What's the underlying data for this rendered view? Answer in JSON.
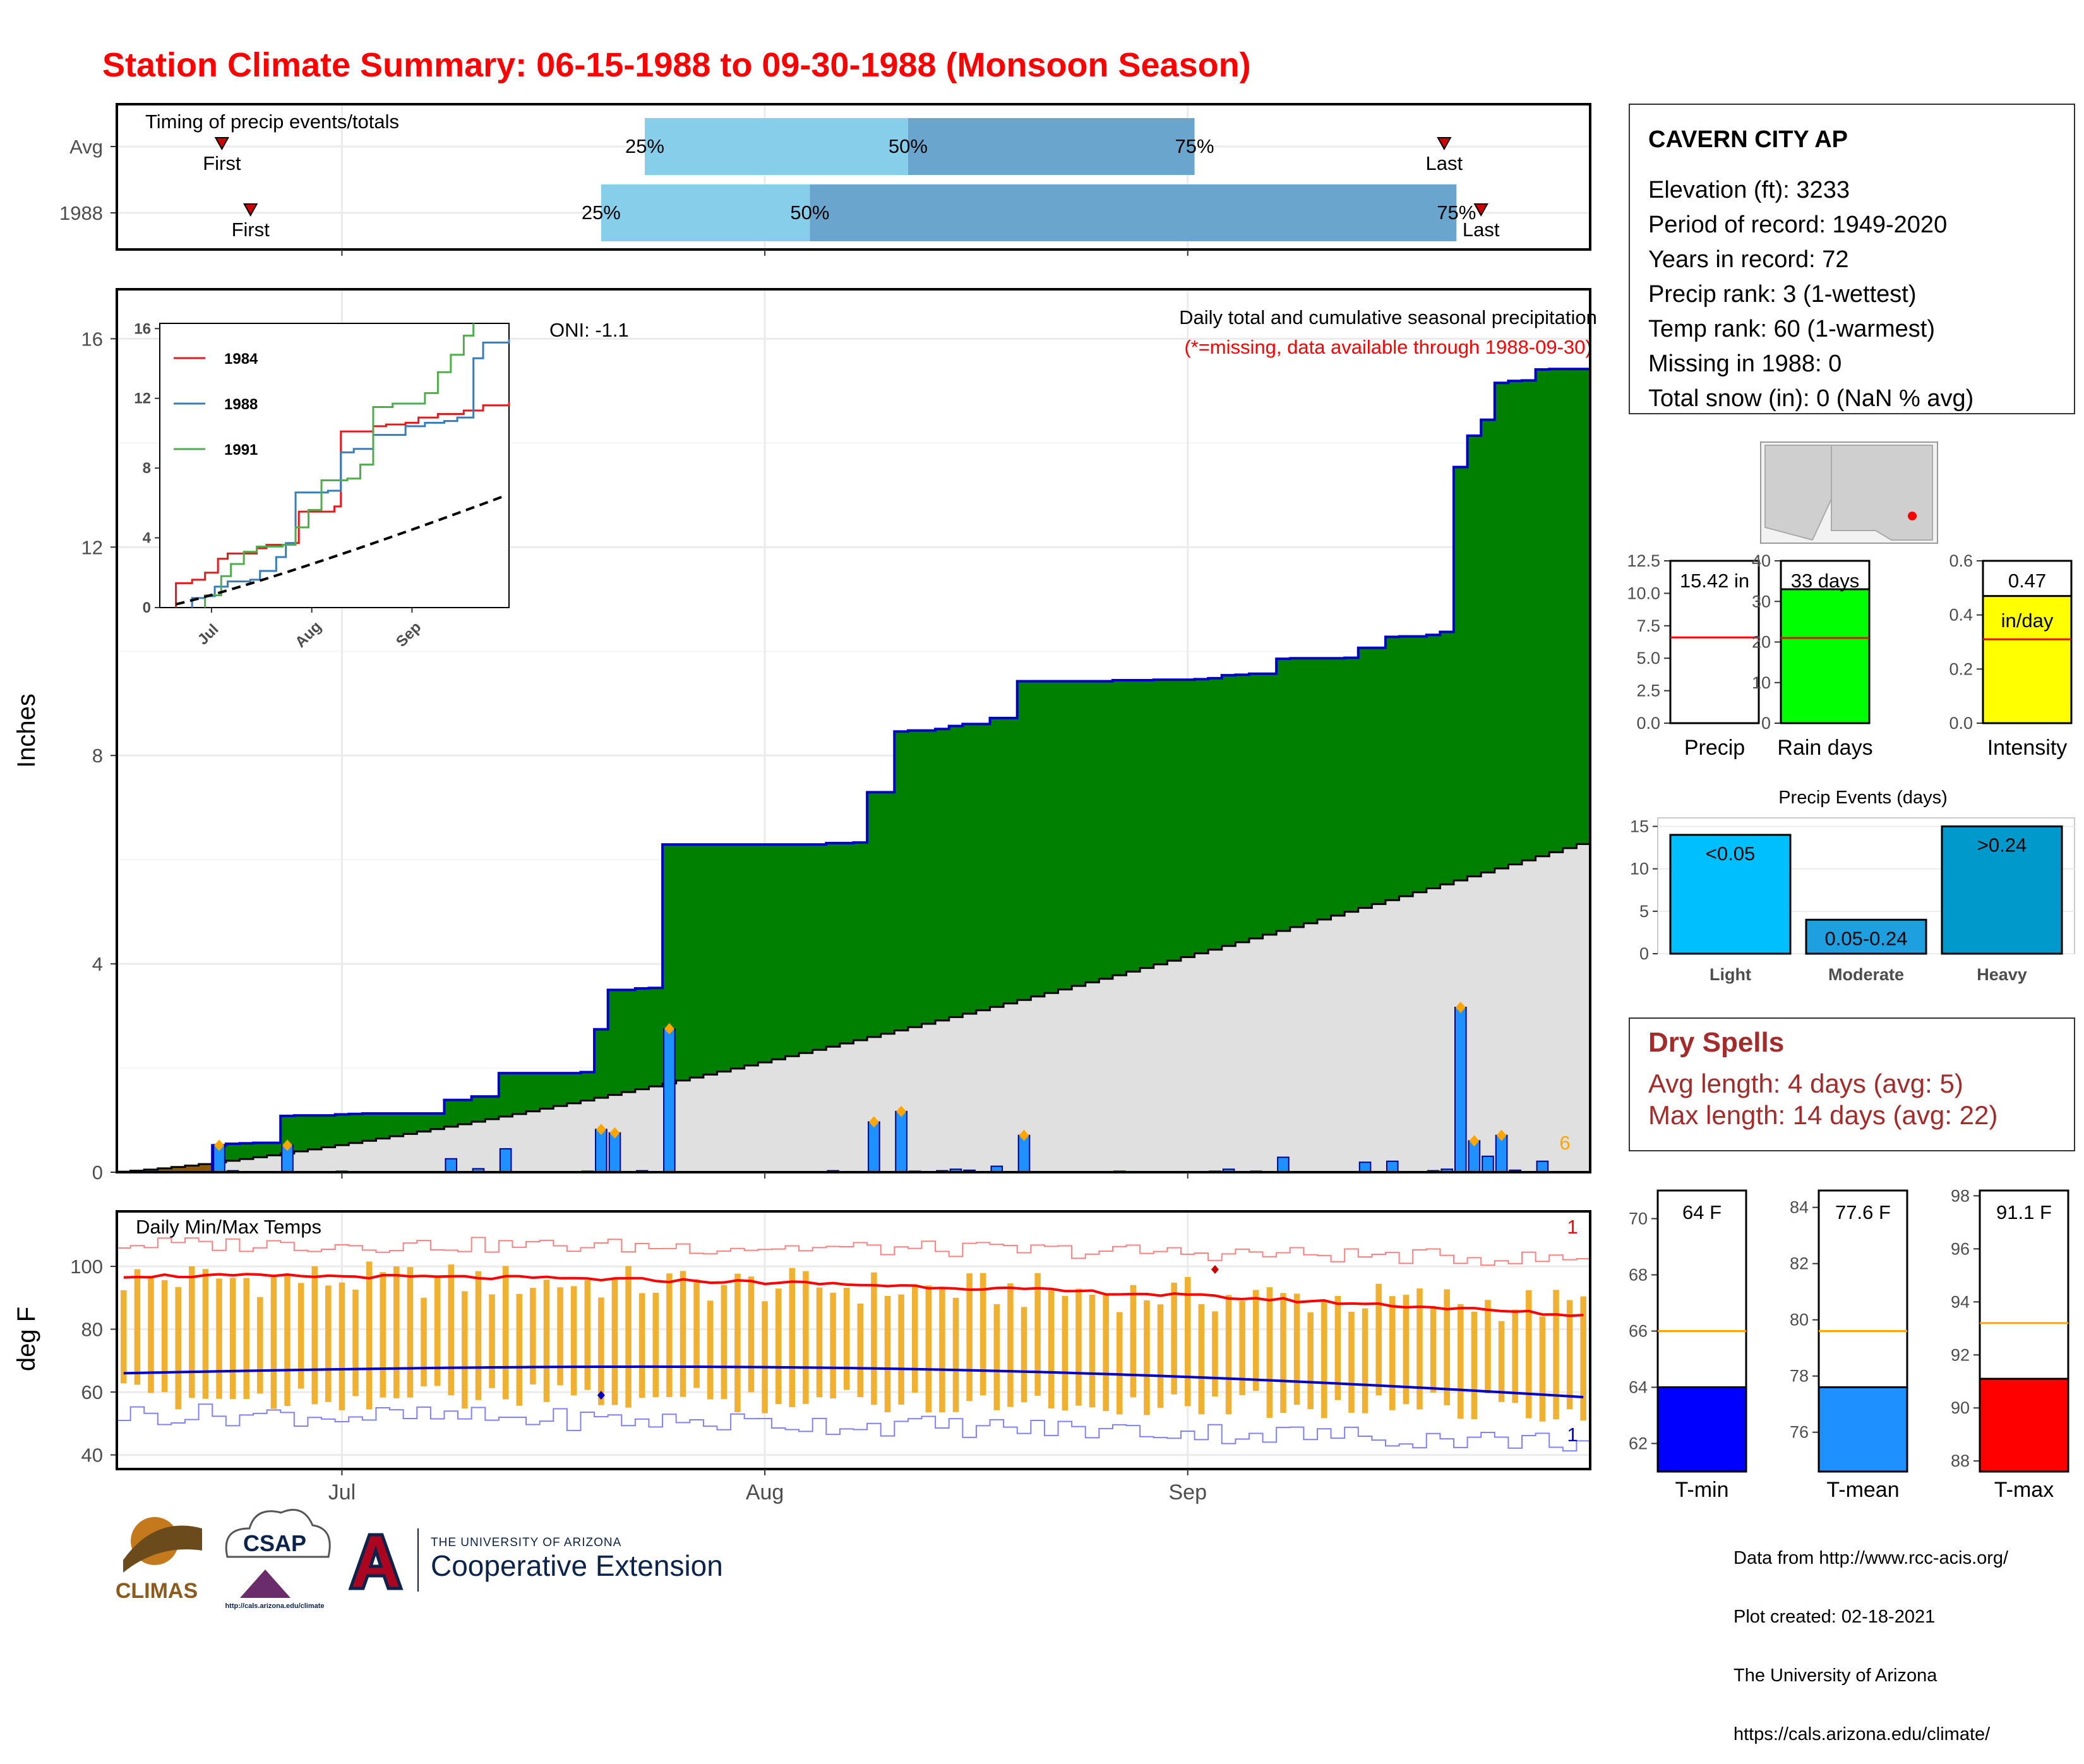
{
  "title": "Station Climate Summary: 06-15-1988 to 09-30-1988 (Monsoon Season)",
  "timing_panel": {
    "label": "Timing of precip events/totals",
    "rows": [
      "Avg",
      "1988"
    ],
    "avg": {
      "first": "First",
      "last": "Last",
      "p25": "25%",
      "p50": "50%",
      "p75": "75%"
    },
    "y1988": {
      "first": "First",
      "last": "Last",
      "p25": "25%",
      "p50": "50%",
      "p75": "75%"
    },
    "colors": {
      "light": "#87ceeb",
      "dark": "#6aa5cd",
      "marker": "#cc0000"
    }
  },
  "main_chart": {
    "ylabel": "Inches",
    "yticks": [
      "0",
      "4",
      "8",
      "12",
      "16"
    ],
    "xticks": [
      "Jul",
      "Aug",
      "Sep"
    ],
    "oni": "ONI: -1.1",
    "legend_title": "Daily total and cumulative seasonal precipitation",
    "legend_note": "(*=missing, data available through 1988-09-30)",
    "corner_count": "6",
    "colors": {
      "cumulative_fill": "#008000",
      "cumulative_line": "#0000cd",
      "avg_fill": "#e0e0e0",
      "deficit_fill": "#8b5a00",
      "daily_bar": "#1e90ff",
      "marker": "#ffa500"
    }
  },
  "inset": {
    "yticks": [
      "0",
      "4",
      "8",
      "12",
      "16"
    ],
    "xticks": [
      "Jul",
      "Aug",
      "Sep"
    ],
    "legend": [
      {
        "name": "1984",
        "color": "#e41a1c"
      },
      {
        "name": "1988",
        "color": "#377eb8"
      },
      {
        "name": "1991",
        "color": "#4daf4a"
      }
    ]
  },
  "temp_chart": {
    "ylabel": "deg F",
    "label": "Daily Min/Max Temps",
    "yticks": [
      "40",
      "60",
      "80",
      "100"
    ],
    "xticks": [
      "Jul",
      "Aug",
      "Sep"
    ],
    "top_count": "1",
    "bottom_count": "1",
    "colors": {
      "bar": "#f0b030",
      "max_line": "#ff0000",
      "min_line": "#0000cd"
    }
  },
  "station": {
    "name": "CAVERN CITY AP",
    "lines": [
      "Elevation (ft): 3233",
      "Period of record: 1949-2020",
      "Years in record: 72",
      "Precip rank: 3 (1-wettest)",
      "Temp rank: 60 (1-warmest)",
      "Missing in 1988: 0",
      "Total snow (in): 0 (NaN % avg)"
    ]
  },
  "summary_bars": [
    {
      "label": "Precip",
      "value_label": "15.42 in",
      "value": 15.42,
      "avg": 6.6,
      "ymax": 12.5,
      "yticks": [
        "0.0",
        "2.5",
        "5.0",
        "7.5",
        "10.0",
        "12.5"
      ],
      "color": "#ffffff"
    },
    {
      "label": "Rain days",
      "value_label": "33 days",
      "value": 33,
      "avg": 21,
      "ymax": 40,
      "yticks": [
        "0",
        "10",
        "20",
        "30",
        "40"
      ],
      "color": "#00ff00"
    },
    {
      "label": "Intensity",
      "value_label": "0.47",
      "unit": "in/day",
      "value": 0.47,
      "avg": 0.31,
      "ymax": 0.6,
      "yticks": [
        "0.0",
        "0.2",
        "0.4",
        "0.6"
      ],
      "color": "#ffff00"
    }
  ],
  "precip_events": {
    "title": "Precip Events (days)",
    "yticks": [
      "0",
      "5",
      "10",
      "15"
    ],
    "bars": [
      {
        "label": "Light",
        "range": "<0.05",
        "value": 14,
        "color": "#00bfff"
      },
      {
        "label": "Moderate",
        "range": "0.05-0.24",
        "value": 4,
        "color": "#1e9fdf"
      },
      {
        "label": "Heavy",
        "range": ">0.24",
        "value": 15,
        "color": "#0099cc"
      }
    ]
  },
  "dry_spells": {
    "title": "Dry Spells",
    "avg_length": "Avg length: 4 days (avg: 5)",
    "max_length": "Max length: 14 days (avg: 22)",
    "color": "#a52a2a"
  },
  "temp_bars": [
    {
      "label": "T-min",
      "value_label": "64 F",
      "value": 64,
      "avg": 66,
      "ylim": [
        61,
        71
      ],
      "yticks": [
        "62",
        "64",
        "66",
        "68",
        "70"
      ],
      "color": "#0000ff"
    },
    {
      "label": "T-mean",
      "value_label": "77.6 F",
      "value": 77.6,
      "avg": 79.6,
      "ylim": [
        74.6,
        84.6
      ],
      "yticks": [
        "76",
        "78",
        "80",
        "82",
        "84"
      ],
      "color": "#1e90ff"
    },
    {
      "label": "T-max",
      "value_label": "91.1 F",
      "value": 91.1,
      "avg": 93.2,
      "ylim": [
        87.6,
        98.2
      ],
      "yticks": [
        "88",
        "90",
        "92",
        "94",
        "96",
        "98"
      ],
      "color": "#ff0000"
    }
  ],
  "credits": [
    "Data from http://www.rcc-acis.org/",
    "Plot created: 02-18-2021",
    "The University of Arizona",
    "https://cals.arizona.edu/climate/"
  ],
  "logos": {
    "climas": "CLIMAS",
    "csap": "CSAP",
    "csap_url": "http://cals.arizona.edu/climate",
    "ua_small": "THE UNIVERSITY OF ARIZONA",
    "ua_large": "Cooperative Extension"
  }
}
